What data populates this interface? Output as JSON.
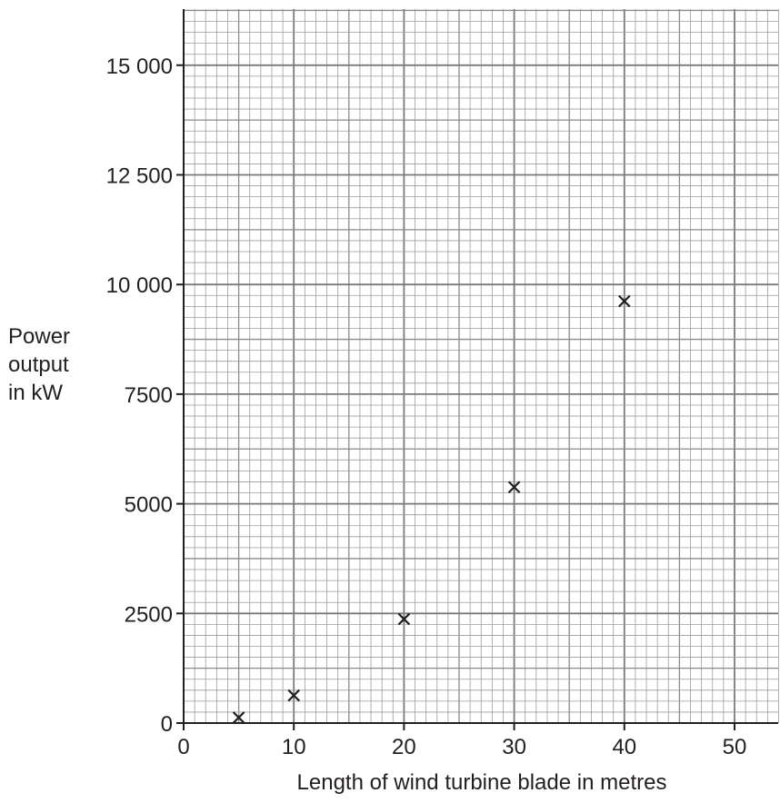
{
  "chart_data": {
    "type": "scatter",
    "title": "",
    "xlabel": "Length of wind turbine blade in metres",
    "ylabel": [
      "Power",
      "output",
      "in kW"
    ],
    "xlim": [
      0,
      54
    ],
    "ylim": [
      0,
      15000
    ],
    "x_ticks": [
      0,
      10,
      20,
      30,
      40,
      50
    ],
    "x_tick_labels": [
      "0",
      "10",
      "20",
      "30",
      "40",
      "50"
    ],
    "y_ticks": [
      0,
      2500,
      5000,
      7500,
      10000,
      12500,
      15000
    ],
    "y_tick_labels": [
      "0",
      "2500",
      "5000",
      "7500",
      "10 000",
      "12 500",
      "15 000"
    ],
    "grid": true,
    "marker": "cross",
    "series": [
      {
        "points": [
          {
            "x": 5,
            "y": 125
          },
          {
            "x": 10,
            "y": 630
          },
          {
            "x": 20,
            "y": 2370
          },
          {
            "x": 30,
            "y": 5380
          },
          {
            "x": 40,
            "y": 9620
          }
        ]
      }
    ]
  }
}
